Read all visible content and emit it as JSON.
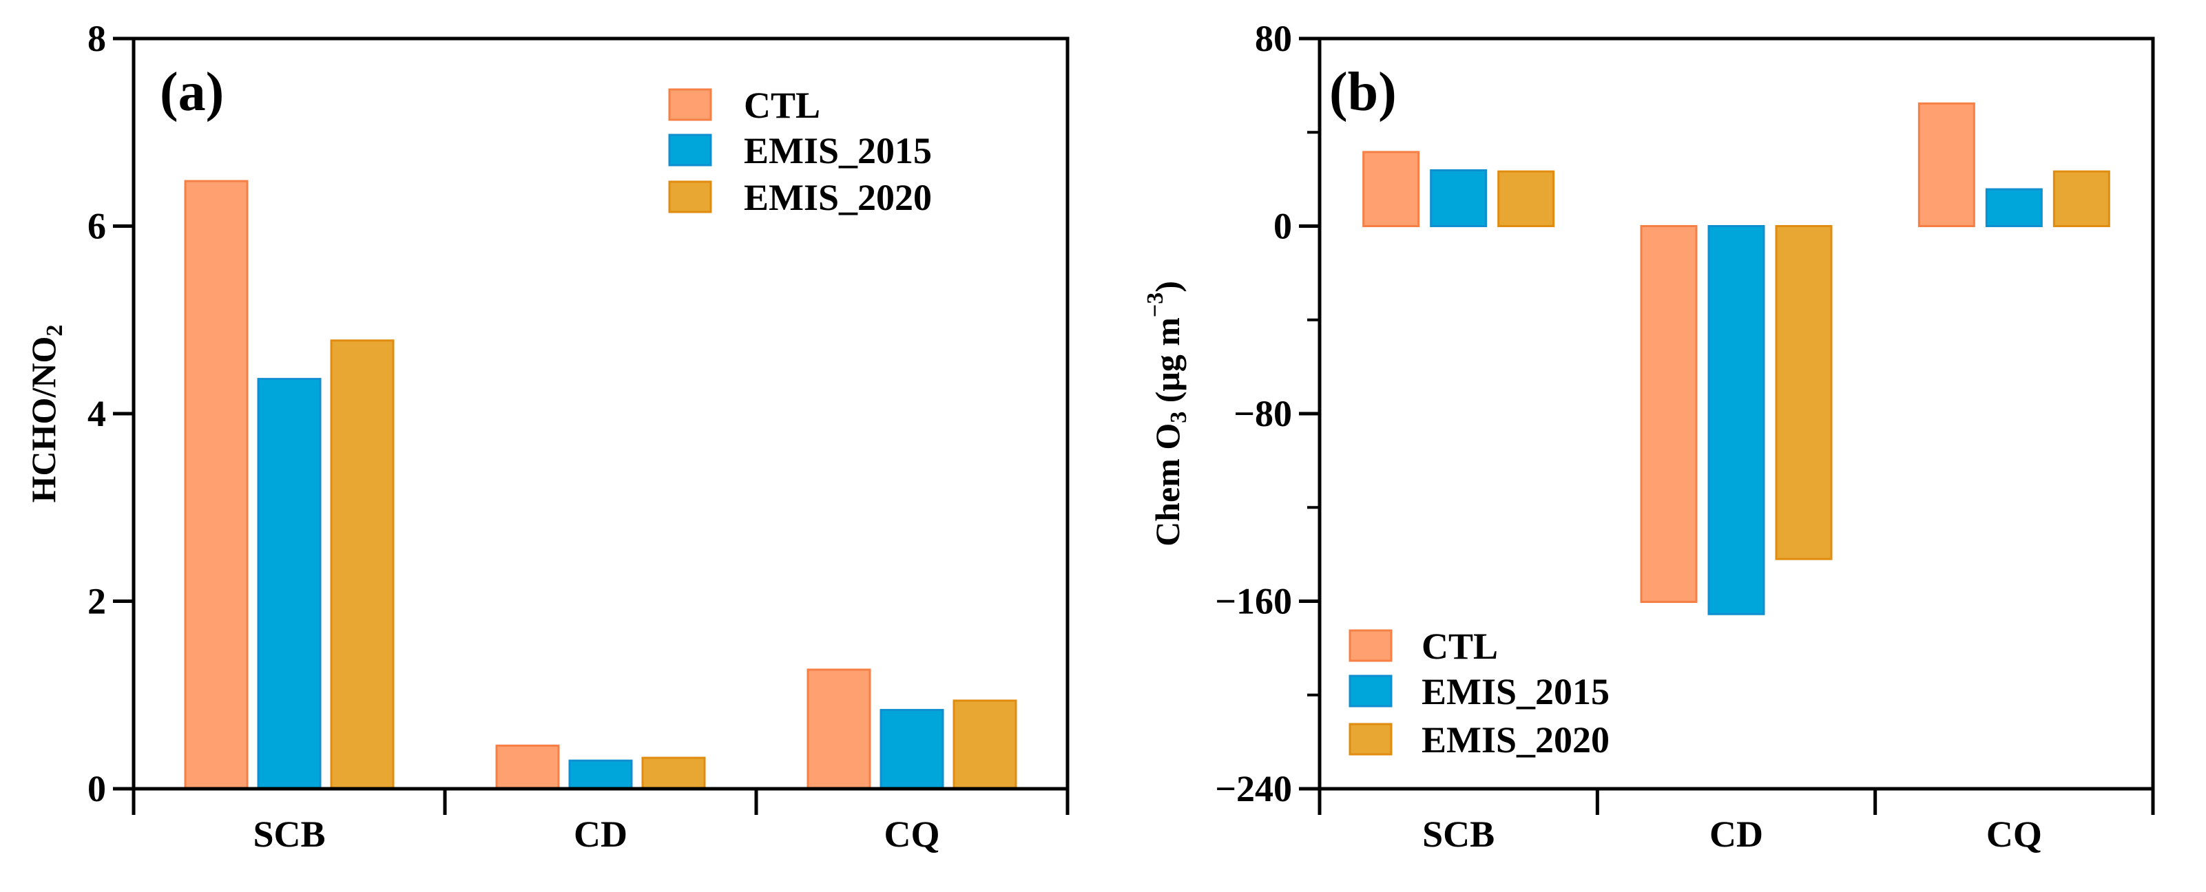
{
  "series_styles": {
    "CTL": {
      "fill": "#FFA070",
      "stroke": "#F57F45"
    },
    "EMIS_2015": {
      "fill": "#00A6DA",
      "stroke": "#108FD0"
    },
    "EMIS_2020": {
      "fill": "#E8A632",
      "stroke": "#E08C10"
    }
  },
  "chart_data": [
    {
      "type": "bar",
      "panel_label": "(a)",
      "ylabel": "HCHO/NO",
      "ylabel_sub": "2",
      "xlabel": "",
      "categories": [
        "SCB",
        "CD",
        "CQ"
      ],
      "ylim": [
        0,
        8
      ],
      "yticks": [
        0,
        2,
        4,
        6,
        8
      ],
      "ytick_labels": [
        "0",
        "2",
        "4",
        "6",
        "8"
      ],
      "minor_yticks": [],
      "legend_position": "top-right",
      "series": [
        {
          "name": "CTL",
          "values": [
            6.48,
            0.46,
            1.27
          ]
        },
        {
          "name": "EMIS_2015",
          "values": [
            4.37,
            0.3,
            0.84
          ]
        },
        {
          "name": "EMIS_2020",
          "values": [
            4.78,
            0.33,
            0.94
          ]
        }
      ]
    },
    {
      "type": "bar",
      "panel_label": "(b)",
      "ylabel": "Chem O",
      "ylabel_sub": "3",
      "ylabel_unit": " (μg m",
      "ylabel_sup": "−3",
      "ylabel_close": ")",
      "xlabel": "",
      "categories": [
        "SCB",
        "CD",
        "CQ"
      ],
      "ylim": [
        -240,
        80
      ],
      "yticks": [
        -240,
        -160,
        -80,
        0,
        80
      ],
      "ytick_labels": [
        "−240",
        "−160",
        "−80",
        "0",
        "80"
      ],
      "minor_yticks": [
        -200,
        -120,
        -40,
        40
      ],
      "legend_position": "bottom-left",
      "series": [
        {
          "name": "CTL",
          "values": [
            31.6,
            -160.3,
            52.3
          ]
        },
        {
          "name": "EMIS_2015",
          "values": [
            23.8,
            -165.5,
            15.7
          ]
        },
        {
          "name": "EMIS_2020",
          "values": [
            23.3,
            -142.0,
            23.3
          ]
        }
      ]
    }
  ]
}
